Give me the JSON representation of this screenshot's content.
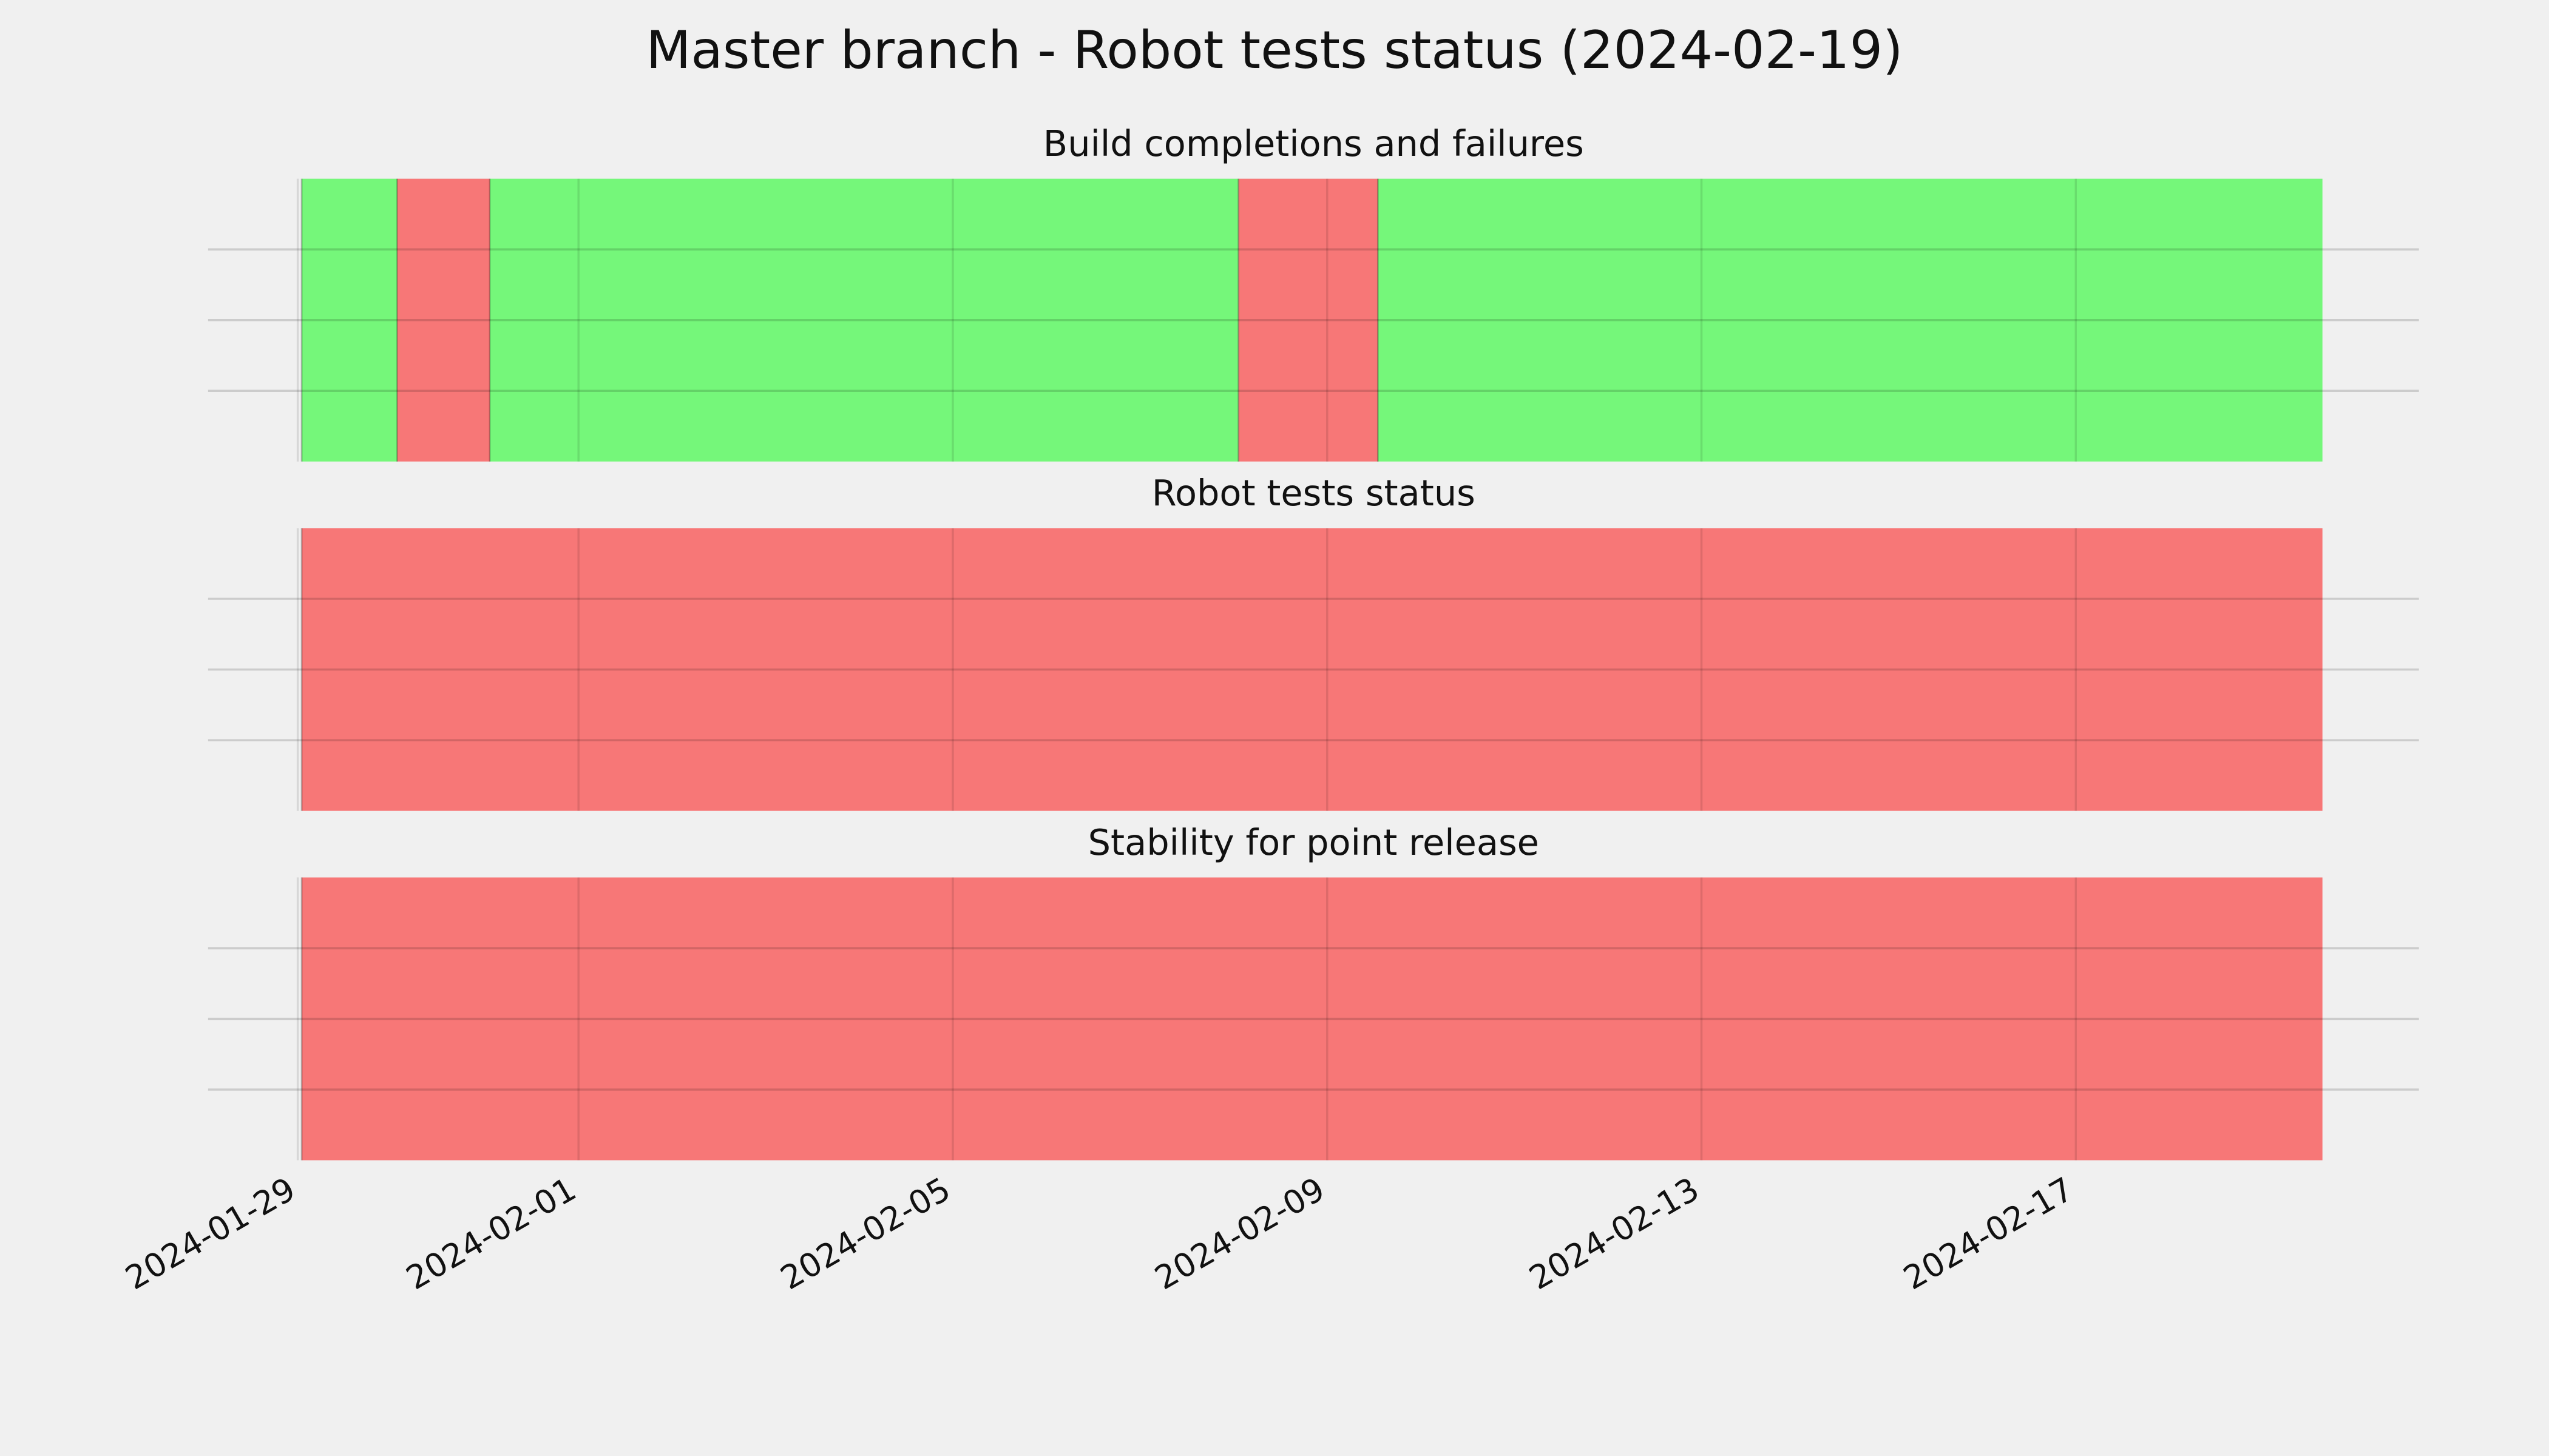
{
  "title": "Master branch - Robot tests status (2024-02-19)",
  "chart_data": [
    {
      "type": "timeline",
      "title": "Build completions and failures",
      "spans": [
        {
          "start": "2024-01-29T01:00",
          "end": "2024-01-30T01:30",
          "color": "#75f77a"
        },
        {
          "start": "2024-01-30T01:30",
          "end": "2024-01-31T01:15",
          "color": "#f77777"
        },
        {
          "start": "2024-01-31T01:15",
          "end": "2024-02-08T01:15",
          "color": "#75f77a"
        },
        {
          "start": "2024-02-08T01:15",
          "end": "2024-02-09T13:00",
          "color": "#f77777"
        },
        {
          "start": "2024-02-09T13:00",
          "end": "2024-02-19T15:15",
          "color": "#75f77a"
        }
      ],
      "xlim": [
        "2024-01-28T01:00",
        "2024-02-20T16:00"
      ],
      "xticks": [
        "2024-01-29",
        "2024-02-01",
        "2024-02-05",
        "2024-02-09",
        "2024-02-13",
        "2024-02-17"
      ],
      "ylim": [
        0,
        1
      ],
      "yticks": [
        0.25,
        0.5,
        0.75
      ],
      "grid": true
    },
    {
      "type": "timeline",
      "title": "Robot tests status",
      "spans": [
        {
          "start": "2024-01-29T01:00",
          "end": "2024-02-19T15:15",
          "color": "#f77777"
        }
      ],
      "xlim": [
        "2024-01-28T01:00",
        "2024-02-20T16:00"
      ],
      "xticks": [
        "2024-01-29",
        "2024-02-01",
        "2024-02-05",
        "2024-02-09",
        "2024-02-13",
        "2024-02-17"
      ],
      "ylim": [
        0,
        1
      ],
      "yticks": [
        0.25,
        0.5,
        0.75
      ],
      "grid": true
    },
    {
      "type": "timeline",
      "title": "Stability for point release",
      "spans": [
        {
          "start": "2024-01-29T01:00",
          "end": "2024-02-19T15:15",
          "color": "#f77777"
        }
      ],
      "xlim": [
        "2024-01-28T01:00",
        "2024-02-20T16:00"
      ],
      "xticks": [
        "2024-01-29",
        "2024-02-01",
        "2024-02-05",
        "2024-02-09",
        "2024-02-13",
        "2024-02-17"
      ],
      "ylim": [
        0,
        1
      ],
      "yticks": [
        0.25,
        0.5,
        0.75
      ],
      "grid": true
    }
  ]
}
